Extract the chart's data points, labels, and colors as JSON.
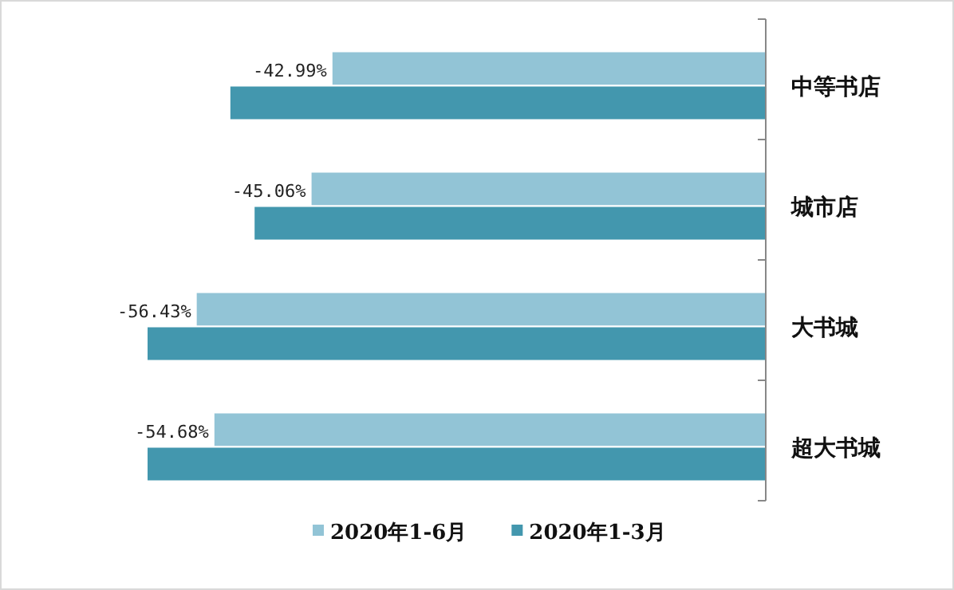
{
  "chart_data": {
    "type": "bar",
    "orientation": "horizontal",
    "categories": [
      "中等书店",
      "城市店",
      "大书城",
      "超大书城"
    ],
    "legend": "bottom",
    "series": [
      {
        "name": "2020年1-6月",
        "color": "#92c4d6",
        "values": [
          -42.99,
          -45.06,
          -56.43,
          -54.68
        ],
        "value_labels": [
          "-42.99%",
          "-45.06%",
          "-56.43%",
          "-54.68%"
        ]
      },
      {
        "name": "2020年1-3月",
        "color": "#4397ae",
        "values": [
          -53.1,
          -50.7,
          -61.3,
          -61.3
        ]
      }
    ]
  }
}
